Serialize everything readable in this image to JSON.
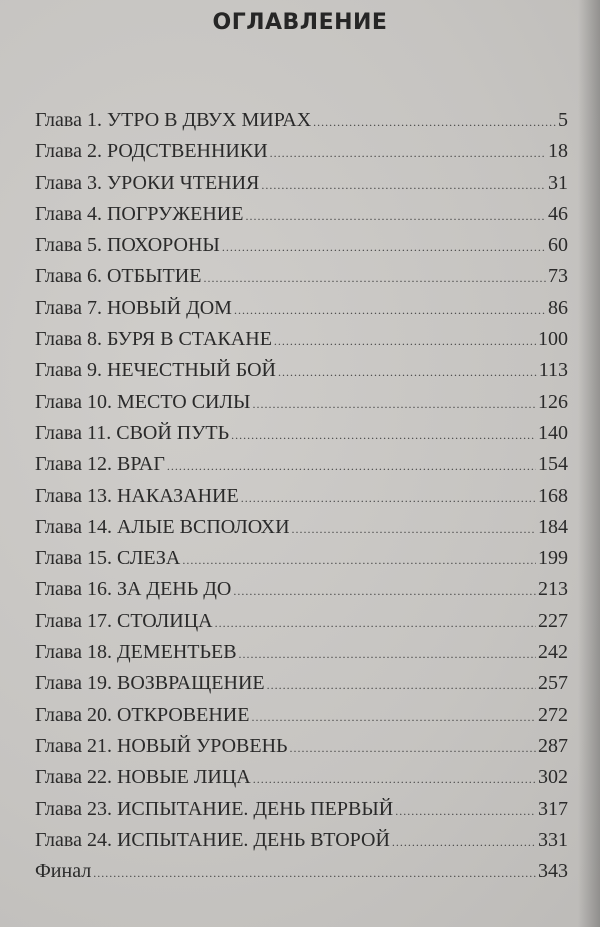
{
  "title": "ОГЛАВЛЕНИЕ",
  "entries": [
    {
      "label": "Глава 1. УТРО В ДВУХ МИРАХ",
      "page": "5"
    },
    {
      "label": "Глава 2. РОДСТВЕННИКИ",
      "page": "18"
    },
    {
      "label": "Глава 3. УРОКИ ЧТЕНИЯ",
      "page": "31"
    },
    {
      "label": "Глава 4. ПОГРУЖЕНИЕ",
      "page": "46"
    },
    {
      "label": "Глава 5. ПОХОРОНЫ",
      "page": "60"
    },
    {
      "label": "Глава 6. ОТБЫТИЕ",
      "page": "73"
    },
    {
      "label": "Глава 7. НОВЫЙ ДОМ",
      "page": "86"
    },
    {
      "label": "Глава 8. БУРЯ В СТАКАНЕ",
      "page": "100"
    },
    {
      "label": "Глава 9. НЕЧЕСТНЫЙ БОЙ",
      "page": "113"
    },
    {
      "label": "Глава 10. МЕСТО СИЛЫ",
      "page": "126"
    },
    {
      "label": "Глава 11. СВОЙ ПУТЬ",
      "page": "140"
    },
    {
      "label": "Глава 12. ВРАГ",
      "page": "154"
    },
    {
      "label": "Глава 13. НАКАЗАНИЕ",
      "page": "168"
    },
    {
      "label": "Глава 14. АЛЫЕ ВСПОЛОХИ",
      "page": "184"
    },
    {
      "label": "Глава 15. СЛЕЗА",
      "page": "199"
    },
    {
      "label": "Глава 16. ЗА ДЕНЬ ДО",
      "page": "213"
    },
    {
      "label": "Глава 17. СТОЛИЦА",
      "page": "227"
    },
    {
      "label": "Глава 18. ДЕМЕНТЬЕВ",
      "page": "242"
    },
    {
      "label": "Глава 19. ВОЗВРАЩЕНИЕ",
      "page": "257"
    },
    {
      "label": "Глава 20. ОТКРОВЕНИЕ",
      "page": "272"
    },
    {
      "label": "Глава 21. НОВЫЙ УРОВЕНЬ",
      "page": "287"
    },
    {
      "label": "Глава 22. НОВЫЕ ЛИЦА",
      "page": "302"
    },
    {
      "label": "Глава 23. ИСПЫТАНИЕ. ДЕНЬ ПЕРВЫЙ",
      "page": "317"
    },
    {
      "label": "Глава 24. ИСПЫТАНИЕ. ДЕНЬ ВТОРОЙ",
      "page": "331"
    },
    {
      "label": "Финал",
      "page": "343"
    }
  ]
}
